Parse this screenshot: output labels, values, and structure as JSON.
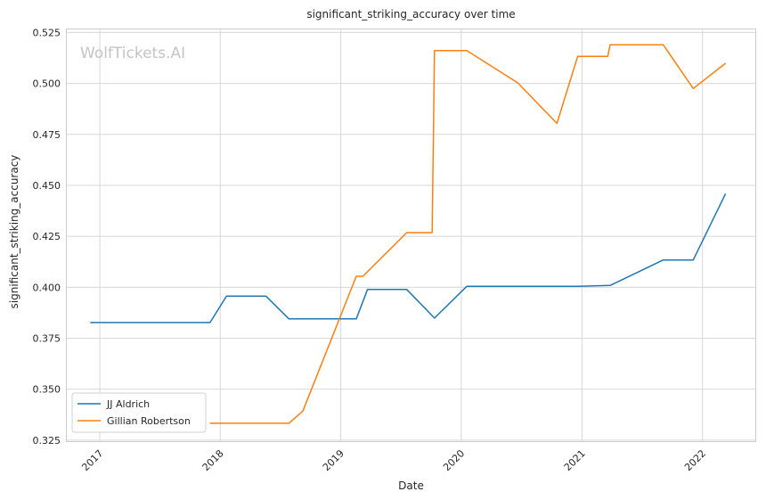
{
  "watermark": "WolfTickets.AI",
  "chart_data": {
    "type": "line",
    "title": "significant_striking_accuracy over time",
    "xlabel": "Date",
    "ylabel": "significant_striking_accuracy",
    "x_axis": "date",
    "xlim": [
      "2016-09-23",
      "2022-06-10"
    ],
    "ylim": [
      0.3245,
      0.5265
    ],
    "x_ticks": [
      {
        "date": "2017-01-01",
        "label": "2017"
      },
      {
        "date": "2018-01-01",
        "label": "2018"
      },
      {
        "date": "2019-01-01",
        "label": "2019"
      },
      {
        "date": "2020-01-01",
        "label": "2020"
      },
      {
        "date": "2021-01-01",
        "label": "2021"
      },
      {
        "date": "2022-01-01",
        "label": "2022"
      }
    ],
    "y_ticks": [
      {
        "value": 0.325,
        "label": "0.325"
      },
      {
        "value": 0.35,
        "label": "0.350"
      },
      {
        "value": 0.375,
        "label": "0.375"
      },
      {
        "value": 0.4,
        "label": "0.400"
      },
      {
        "value": 0.425,
        "label": "0.425"
      },
      {
        "value": 0.45,
        "label": "0.450"
      },
      {
        "value": 0.475,
        "label": "0.475"
      },
      {
        "value": 0.5,
        "label": "0.500"
      },
      {
        "value": 0.525,
        "label": "0.525"
      }
    ],
    "grid": true,
    "legend_position": "lower-left",
    "series": [
      {
        "name": "JJ Aldrich",
        "color": "#1f77b4",
        "x": [
          "2016-12-03",
          "2017-12-01",
          "2018-01-20",
          "2018-05-19",
          "2018-07-28",
          "2019-02-17",
          "2019-03-23",
          "2019-07-20",
          "2019-10-12",
          "2020-01-18",
          "2020-12-19",
          "2021-03-27",
          "2021-09-04",
          "2021-12-04",
          "2022-03-12"
        ],
        "y": [
          0.3827,
          0.3827,
          0.3957,
          0.3957,
          0.3845,
          0.3845,
          0.3989,
          0.3989,
          0.3849,
          0.4005,
          0.4005,
          0.4009,
          0.4134,
          0.4134,
          0.4459
        ]
      },
      {
        "name": "Gillian Robertson",
        "color": "#ff7f0e",
        "x": [
          "2017-12-01",
          "2018-07-28",
          "2018-09-08",
          "2019-02-17",
          "2019-03-09",
          "2019-07-20",
          "2019-10-05",
          "2019-10-12",
          "2020-01-18",
          "2020-06-20",
          "2020-10-17",
          "2020-12-19",
          "2021-03-20",
          "2021-03-27",
          "2021-09-04",
          "2021-12-04",
          "2022-03-12"
        ],
        "y": [
          0.3333,
          0.3333,
          0.3393,
          0.4054,
          0.4054,
          0.4268,
          0.4268,
          0.5161,
          0.5161,
          0.5003,
          0.4804,
          0.5133,
          0.5133,
          0.519,
          0.519,
          0.4975,
          0.5099
        ]
      }
    ]
  }
}
